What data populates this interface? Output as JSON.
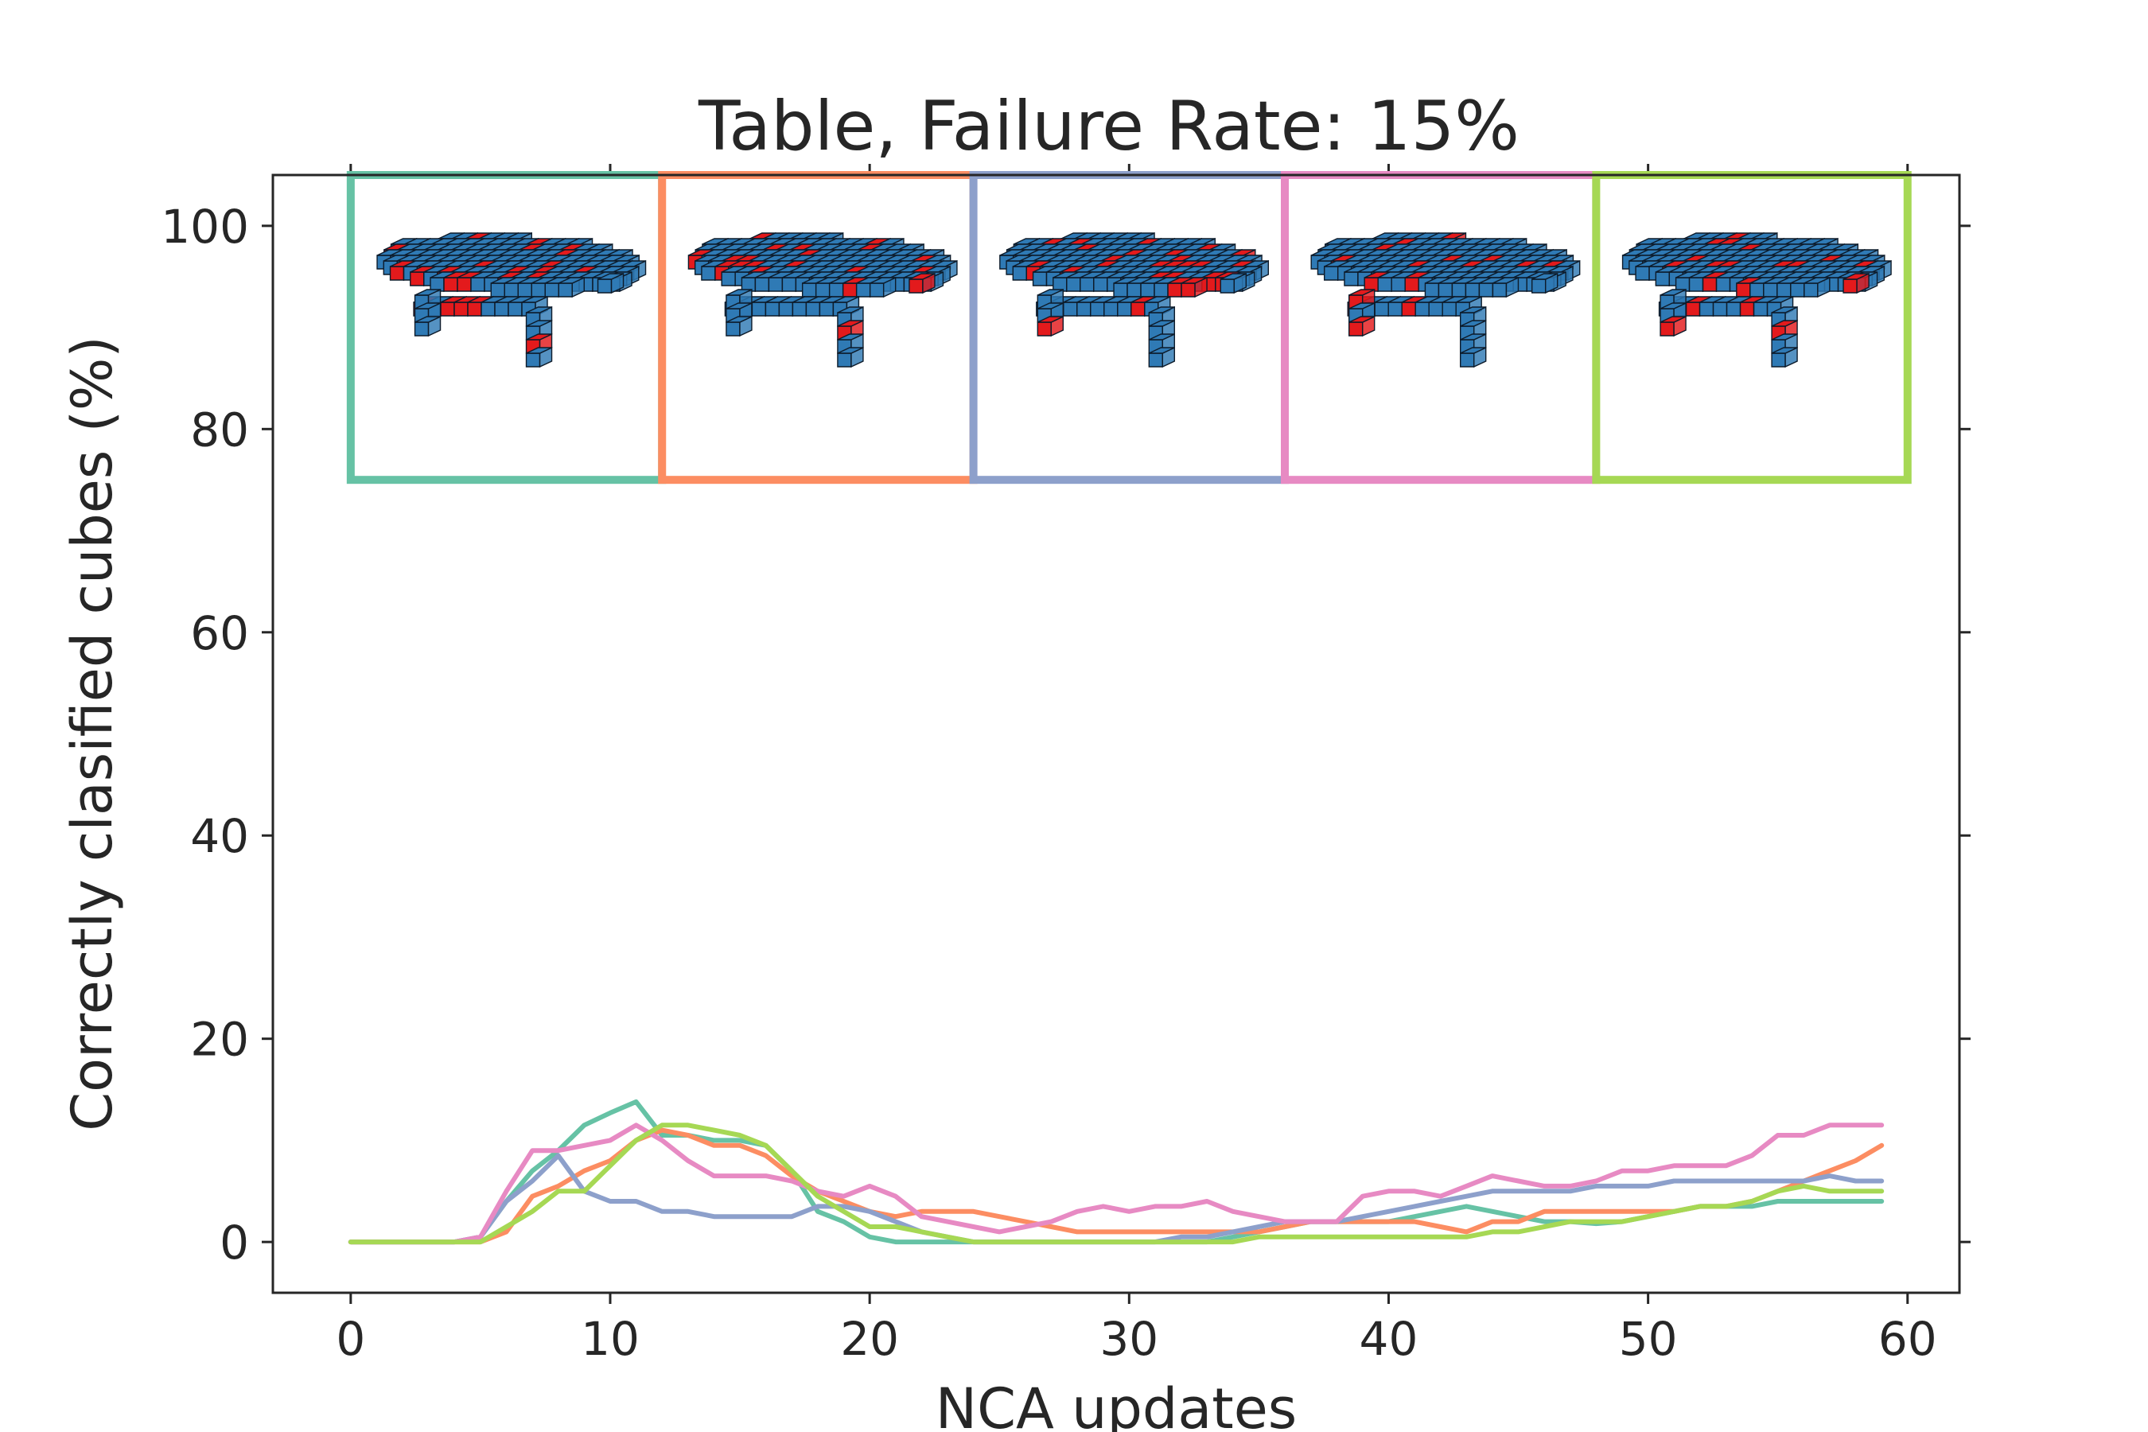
{
  "chart_data": {
    "type": "line",
    "title": "Table, Failure Rate: 15%",
    "xlabel": "NCA updates",
    "ylabel": "Correctly clasified cubes (%)",
    "xlim": [
      -3,
      62
    ],
    "ylim": [
      -5,
      105
    ],
    "xticks": [
      "0",
      "10",
      "20",
      "30",
      "40",
      "50",
      "60"
    ],
    "yticks": [
      "0",
      "20",
      "40",
      "60",
      "80",
      "100"
    ],
    "grid": false,
    "legend": "none",
    "x": [
      0,
      1,
      2,
      3,
      4,
      5,
      6,
      7,
      8,
      9,
      10,
      11,
      12,
      13,
      14,
      15,
      16,
      17,
      18,
      19,
      20,
      21,
      22,
      23,
      24,
      25,
      26,
      27,
      28,
      29,
      30,
      31,
      32,
      33,
      34,
      35,
      36,
      37,
      38,
      39,
      40,
      41,
      42,
      43,
      44,
      45,
      46,
      47,
      48,
      49,
      50,
      51,
      52,
      53,
      54,
      55,
      56,
      57,
      58,
      59
    ],
    "series": [
      {
        "color": "#66c2a5",
        "values": [
          0,
          0,
          0,
          0,
          0,
          0.5,
          4,
          7,
          9,
          11.5,
          12.7,
          13.8,
          10.5,
          10.5,
          10,
          10,
          9.5,
          7,
          3,
          2,
          0.5,
          0,
          0,
          0,
          0,
          0,
          0,
          0,
          0,
          0,
          0,
          0,
          0,
          0,
          0.5,
          1,
          1.5,
          2,
          2,
          2,
          2,
          2.5,
          3,
          3.5,
          3,
          2.5,
          2,
          2,
          1.8,
          2,
          2.5,
          3,
          3.5,
          3.5,
          3.5,
          4,
          4,
          4,
          4,
          4
        ]
      },
      {
        "color": "#fc8d62",
        "values": [
          0,
          0,
          0,
          0,
          0,
          0,
          1,
          4.5,
          5.5,
          7,
          8,
          10,
          11,
          10.5,
          9.5,
          9.5,
          8.5,
          6.5,
          5,
          4,
          3,
          2.5,
          3,
          3,
          3,
          2.5,
          2,
          1.5,
          1,
          1,
          1,
          1,
          1,
          1,
          1,
          1,
          1.5,
          2,
          2,
          2,
          2,
          2,
          1.5,
          1,
          2,
          2,
          3,
          3,
          3,
          3,
          3,
          3,
          3.5,
          3.5,
          4,
          5,
          6,
          7,
          8,
          9.5
        ]
      },
      {
        "color": "#8da0cb",
        "values": [
          0,
          0,
          0,
          0,
          0,
          0.5,
          4,
          6,
          8.5,
          5,
          4,
          4,
          3,
          3,
          2.5,
          2.5,
          2.5,
          2.5,
          3.5,
          3.5,
          3,
          2,
          1,
          0.5,
          0,
          0,
          0,
          0,
          0,
          0,
          0,
          0,
          0.5,
          0.5,
          1,
          1.5,
          2,
          2,
          2,
          2.5,
          3,
          3.5,
          4,
          4.5,
          5,
          5,
          5,
          5,
          5.5,
          5.5,
          5.5,
          6,
          6,
          6,
          6,
          6,
          6,
          6.5,
          6,
          6
        ]
      },
      {
        "color": "#e78ac3",
        "values": [
          0,
          0,
          0,
          0,
          0,
          0.5,
          5,
          9,
          9,
          9.5,
          10,
          11.5,
          10,
          8,
          6.5,
          6.5,
          6.5,
          6,
          5,
          4.5,
          5.5,
          4.5,
          2.5,
          2,
          1.5,
          1,
          1.5,
          2,
          3,
          3.5,
          3,
          3.5,
          3.5,
          4,
          3,
          2.5,
          2,
          2,
          2,
          4.5,
          5,
          5,
          4.5,
          5.5,
          6.5,
          6,
          5.5,
          5.5,
          6,
          7,
          7,
          7.5,
          7.5,
          7.5,
          8.5,
          10.5,
          10.5,
          11.5,
          11.5,
          11.5
        ]
      },
      {
        "color": "#a6d854",
        "values": [
          0,
          0,
          0,
          0,
          0,
          0,
          1.5,
          3,
          5,
          5,
          7.5,
          10,
          11.5,
          11.5,
          11,
          10.5,
          9.5,
          7,
          4.5,
          3,
          1.5,
          1.5,
          1,
          0.5,
          0,
          0,
          0,
          0,
          0,
          0,
          0,
          0,
          0,
          0,
          0,
          0.5,
          0.5,
          0.5,
          0.5,
          0.5,
          0.5,
          0.5,
          0.5,
          0.5,
          1,
          1,
          1.5,
          2,
          2,
          2,
          2.5,
          3,
          3.5,
          3.5,
          4,
          5,
          5.5,
          5,
          5,
          5
        ]
      }
    ],
    "insets": [
      {
        "frame_color": "#66c2a5",
        "x_range": [
          0,
          12
        ],
        "y_range": [
          75,
          105
        ],
        "description": "voxel table"
      },
      {
        "frame_color": "#fc8d62",
        "x_range": [
          12,
          24
        ],
        "y_range": [
          75,
          105
        ],
        "description": "voxel table"
      },
      {
        "frame_color": "#8da0cb",
        "x_range": [
          24,
          36
        ],
        "y_range": [
          75,
          105
        ],
        "description": "voxel table"
      },
      {
        "frame_color": "#e78ac3",
        "x_range": [
          36,
          48
        ],
        "y_range": [
          75,
          105
        ],
        "description": "voxel table"
      },
      {
        "frame_color": "#a6d854",
        "x_range": [
          48,
          60
        ],
        "y_range": [
          75,
          105
        ],
        "description": "voxel table"
      }
    ],
    "voxel_colors": {
      "correct": "#2f7ab5",
      "wrong": "#e31a1c",
      "edge": "#0d1b2a"
    }
  }
}
